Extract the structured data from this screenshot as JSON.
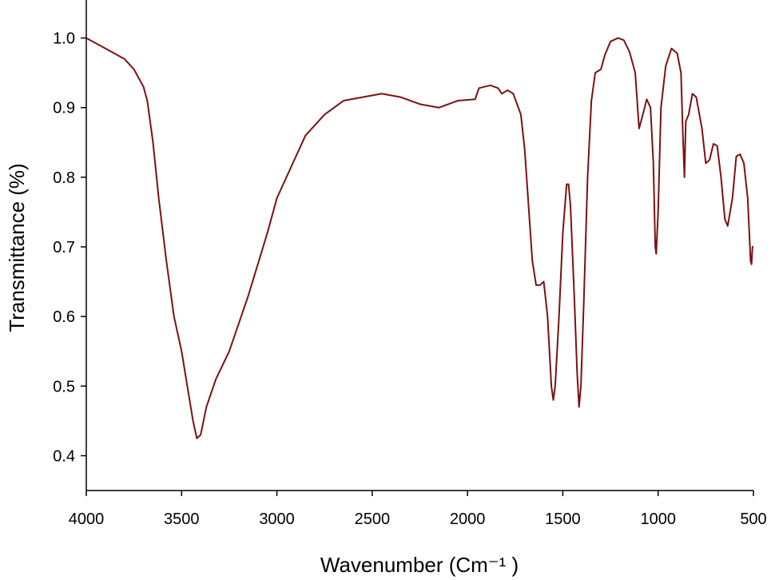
{
  "chart_data": {
    "type": "line",
    "xlabel": "Wavenumber (Cm⁻¹ )",
    "ylabel": "Transmittance (%)",
    "xlim": [
      4000,
      500
    ],
    "xticks": [
      4000,
      3500,
      3000,
      2500,
      2000,
      1500,
      1000,
      500
    ],
    "ylim": [
      0.35,
      1.05
    ],
    "yticks": [
      0.4,
      0.5,
      0.6,
      0.7,
      0.8,
      0.9,
      {
        "value": 1,
        "label": "1.0"
      }
    ],
    "grid": false,
    "series": [
      {
        "color": "#7b1113",
        "x": [
          4000,
          3900,
          3800,
          3750,
          3700,
          3680,
          3650,
          3620,
          3580,
          3540,
          3500,
          3470,
          3440,
          3420,
          3400,
          3370,
          3320,
          3250,
          3150,
          3050,
          3000,
          2900,
          2850,
          2750,
          2650,
          2550,
          2450,
          2350,
          2250,
          2150,
          2050,
          1960,
          1940,
          1880,
          1840,
          1820,
          1790,
          1760,
          1720,
          1700,
          1680,
          1660,
          1640,
          1620,
          1600,
          1580,
          1560,
          1550,
          1540,
          1520,
          1500,
          1480,
          1470,
          1460,
          1440,
          1425,
          1415,
          1405,
          1390,
          1370,
          1350,
          1330,
          1300,
          1280,
          1250,
          1210,
          1180,
          1150,
          1120,
          1100,
          1080,
          1060,
          1040,
          1025,
          1015,
          1010,
          1000,
          985,
          960,
          930,
          900,
          880,
          870,
          862,
          855,
          840,
          820,
          800,
          770,
          750,
          730,
          710,
          690,
          670,
          650,
          635,
          610,
          590,
          570,
          550,
          530,
          515,
          510,
          505,
          500
        ],
        "values": [
          1.0,
          0.985,
          0.97,
          0.955,
          0.93,
          0.91,
          0.85,
          0.77,
          0.68,
          0.6,
          0.55,
          0.5,
          0.45,
          0.425,
          0.43,
          0.47,
          0.51,
          0.55,
          0.63,
          0.72,
          0.77,
          0.83,
          0.86,
          0.89,
          0.91,
          0.915,
          0.92,
          0.915,
          0.905,
          0.9,
          0.91,
          0.912,
          0.928,
          0.932,
          0.928,
          0.92,
          0.925,
          0.92,
          0.89,
          0.84,
          0.76,
          0.68,
          0.645,
          0.645,
          0.65,
          0.6,
          0.5,
          0.48,
          0.5,
          0.6,
          0.72,
          0.79,
          0.79,
          0.76,
          0.63,
          0.52,
          0.47,
          0.5,
          0.62,
          0.8,
          0.91,
          0.95,
          0.955,
          0.975,
          0.995,
          1.0,
          0.997,
          0.98,
          0.95,
          0.87,
          0.89,
          0.912,
          0.9,
          0.82,
          0.7,
          0.69,
          0.75,
          0.9,
          0.96,
          0.985,
          0.978,
          0.95,
          0.86,
          0.8,
          0.88,
          0.89,
          0.92,
          0.915,
          0.87,
          0.82,
          0.825,
          0.848,
          0.845,
          0.8,
          0.74,
          0.73,
          0.77,
          0.83,
          0.833,
          0.82,
          0.77,
          0.68,
          0.675,
          0.7,
          0.7
        ]
      }
    ]
  }
}
